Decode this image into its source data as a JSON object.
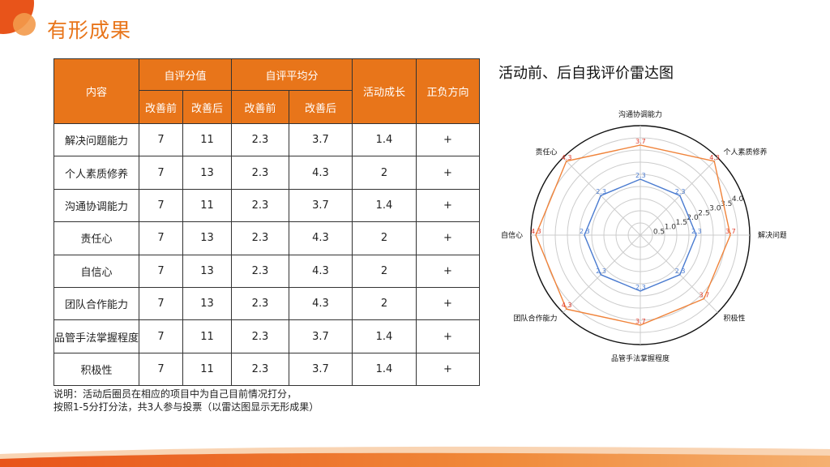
{
  "page": {
    "title": "有形成果"
  },
  "colors": {
    "accent": "#e8751a",
    "before_line": "#4a7bd0",
    "after_line": "#f0833a",
    "after_label": "#e03a2a"
  },
  "table": {
    "header": {
      "content": "内容",
      "self_score": "自评分值",
      "self_avg": "自评平均分",
      "growth": "活动成长",
      "direction": "正负方向",
      "before": "改善前",
      "after": "改善后"
    },
    "rows": [
      {
        "item": "解决问题能力",
        "score_before": "7",
        "score_after": "11",
        "avg_before": "2.3",
        "avg_after": "3.7",
        "growth": "1.4",
        "direction": "+"
      },
      {
        "item": "个人素质修养",
        "score_before": "7",
        "score_after": "13",
        "avg_before": "2.3",
        "avg_after": "4.3",
        "growth": "2",
        "direction": "+"
      },
      {
        "item": "沟通协调能力",
        "score_before": "7",
        "score_after": "11",
        "avg_before": "2.3",
        "avg_after": "3.7",
        "growth": "1.4",
        "direction": "+"
      },
      {
        "item": "责任心",
        "score_before": "7",
        "score_after": "13",
        "avg_before": "2.3",
        "avg_after": "4.3",
        "growth": "2",
        "direction": "+"
      },
      {
        "item": "自信心",
        "score_before": "7",
        "score_after": "13",
        "avg_before": "2.3",
        "avg_after": "4.3",
        "growth": "2",
        "direction": "+"
      },
      {
        "item": "团队合作能力",
        "score_before": "7",
        "score_after": "13",
        "avg_before": "2.3",
        "avg_after": "4.3",
        "growth": "2",
        "direction": "+"
      },
      {
        "item": "品管手法掌握程度",
        "score_before": "7",
        "score_after": "11",
        "avg_before": "2.3",
        "avg_after": "3.7",
        "growth": "1.4",
        "direction": "+"
      },
      {
        "item": "积极性",
        "score_before": "7",
        "score_after": "11",
        "avg_before": "2.3",
        "avg_after": "3.7",
        "growth": "1.4",
        "direction": "+"
      }
    ]
  },
  "note": {
    "line1": "说明：活动后圈员在相应的项目中为自己目前情况打分，",
    "line2": "按照1-5分打分法，共3人参与投票（以雷达图显示无形成果）"
  },
  "chart_data": {
    "type": "radar",
    "title": "活动前、后自我评价雷达图",
    "categories": [
      "解决问题能力",
      "个人素质修养",
      "沟通协调能力",
      "责任心",
      "自信心",
      "团队合作能力",
      "品管手法掌握程度",
      "积极性"
    ],
    "series": [
      {
        "values": [
          2.3,
          2.3,
          2.3,
          2.3,
          2.3,
          2.3,
          2.3,
          2.3
        ]
      },
      {
        "values": [
          3.7,
          4.3,
          3.7,
          4.3,
          4.3,
          4.3,
          3.7,
          3.7
        ]
      }
    ],
    "rlim": [
      0,
      4.5
    ],
    "rticks": [
      0.5,
      1.0,
      1.5,
      2.0,
      2.5,
      3.0,
      3.5,
      4.0
    ],
    "rtick_labels": [
      "0.5",
      "1.0",
      "1.5",
      "2.0",
      "2.5",
      "3.0",
      "3.5",
      "4.0"
    ],
    "data_labels": [
      [
        "2.3",
        "2.3",
        "2.3",
        "2.3",
        "2.3",
        "2.3",
        "2.3",
        "2.3"
      ],
      [
        "3.7",
        "4.3",
        "3.7",
        "4.3",
        "4.3",
        "4.3",
        "3.7",
        "3.7"
      ]
    ],
    "grid": true
  }
}
